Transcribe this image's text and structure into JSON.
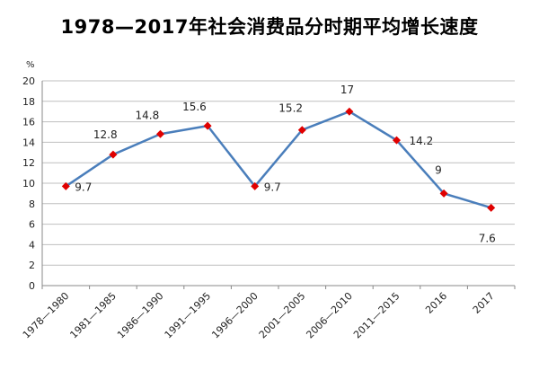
{
  "chart_data": {
    "type": "line",
    "title": "1978—2017年社会消费品分时期平均增长速度",
    "unit": "%",
    "categories": [
      "1978—1980",
      "1981—1985",
      "1986—1990",
      "1991—1995",
      "1996—2000",
      "2001—2005",
      "2006—2010",
      "2011—2015",
      "2016",
      "2017"
    ],
    "series": [
      {
        "values": [
          9.7,
          12.8,
          14.8,
          15.6,
          9.7,
          15.2,
          17,
          14.2,
          9,
          7.6
        ],
        "labels": [
          "9.7",
          "12.8",
          "14.8",
          "15.6",
          "9.7",
          "15.2",
          "17",
          "14.2",
          "9",
          "7.6"
        ]
      }
    ],
    "ylim": [
      0,
      20
    ],
    "yticks": [
      0,
      2,
      4,
      6,
      8,
      10,
      12,
      14,
      16,
      18,
      20
    ],
    "grid": "horizontal",
    "line_color": "#4a7ebb",
    "marker_color": "#e00000",
    "grid_color": "#bfbfbf",
    "axis_color": "#888888"
  }
}
